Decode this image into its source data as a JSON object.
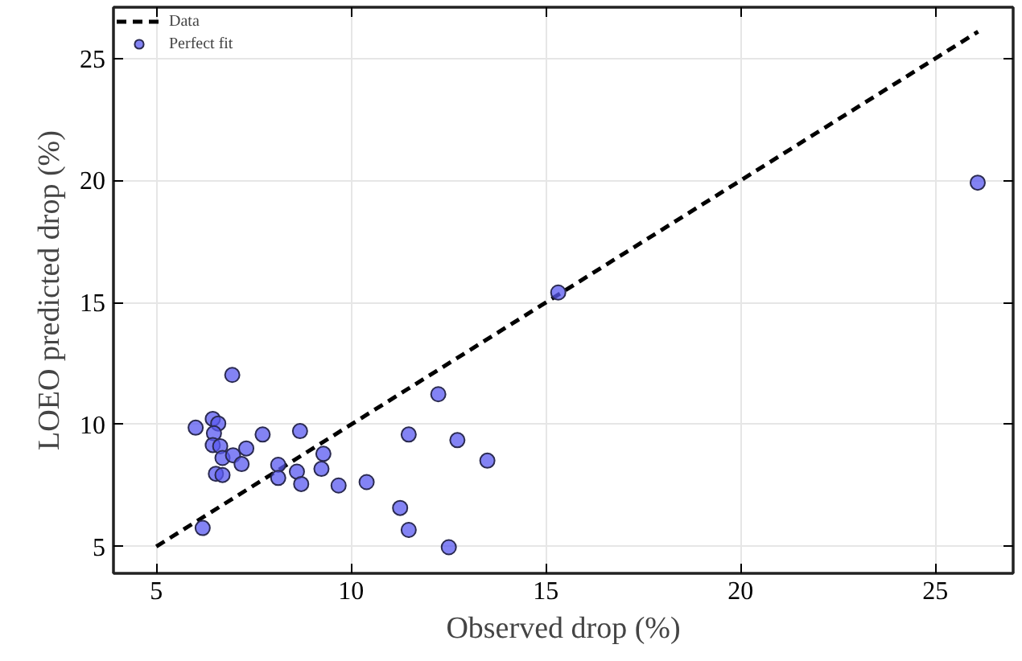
{
  "chart_data": {
    "type": "scatter",
    "xlabel": "Observed drop (%)",
    "ylabel": "LOEO predicted drop (%)",
    "xlim": [
      3.9,
      27
    ],
    "ylim": [
      3.9,
      27.1
    ],
    "xticks": [
      5,
      10,
      15,
      20,
      25
    ],
    "yticks": [
      5,
      10,
      15,
      20,
      25
    ],
    "grid": true,
    "legend": "top left",
    "series": [
      {
        "name": "Data",
        "type": "line",
        "color": "#000000",
        "line_style": "dashed",
        "x": [
          5,
          26.1
        ],
        "values": [
          5,
          26.1
        ]
      },
      {
        "name": "Perfect fit",
        "color": "#5a5af0",
        "marker": "circle",
        "x": [
          6.01,
          6.45,
          6.59,
          6.48,
          6.45,
          6.64,
          6.7,
          6.97,
          6.53,
          6.7,
          7.19,
          7.31,
          6.95,
          7.73,
          8.13,
          8.13,
          8.61,
          8.72,
          8.69,
          9.29,
          9.24,
          9.68,
          10.4,
          11.26,
          11.48,
          11.48,
          12.24,
          12.73,
          12.51,
          13.5,
          6.19,
          15.32,
          26.09
        ],
        "values": [
          9.87,
          10.23,
          10.04,
          9.64,
          9.16,
          9.11,
          8.63,
          8.74,
          7.98,
          7.93,
          8.38,
          9.02,
          12.03,
          9.59,
          8.35,
          7.81,
          8.07,
          7.56,
          9.73,
          8.8,
          8.18,
          7.5,
          7.64,
          6.58,
          5.68,
          9.59,
          11.24,
          9.36,
          4.97,
          8.52,
          5.76,
          15.41,
          19.91
        ]
      }
    ]
  }
}
